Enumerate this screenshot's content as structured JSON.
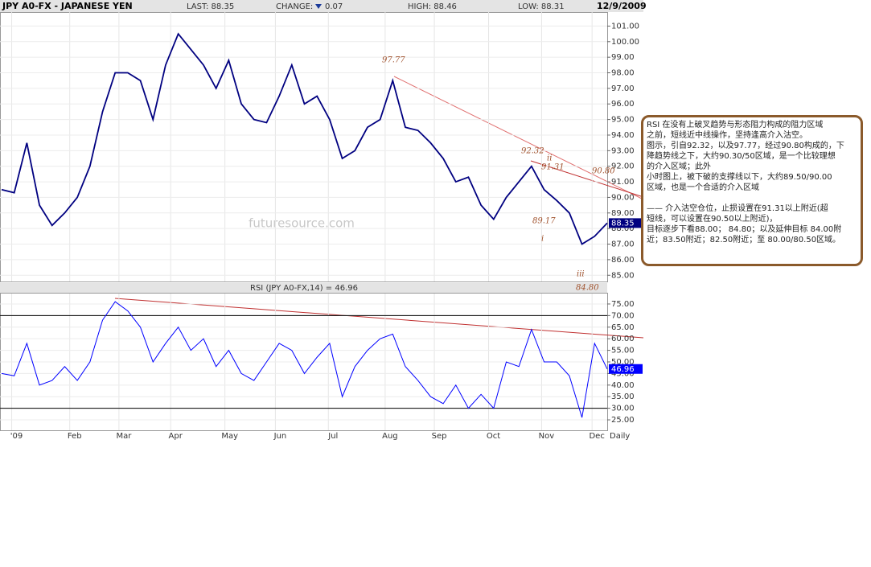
{
  "chart_data": {
    "type": "line",
    "title": "JPY A0-FX - JAPANESE YEN",
    "header": {
      "last": "LAST: 88.35",
      "change_label": "CHANGE:",
      "change": "0.07",
      "high": "HIGH: 88.46",
      "low": "LOW: 88.31",
      "date": "12/9/2009"
    },
    "watermark": "futuresource.com",
    "period": "Daily",
    "xlim": [
      0,
      48
    ],
    "xticks": [
      {
        "value": 0.8,
        "label": "'09"
      },
      {
        "value": 5.4,
        "label": "Feb"
      },
      {
        "value": 9.3,
        "label": "Mar"
      },
      {
        "value": 13.4,
        "label": "Apr"
      },
      {
        "value": 17.7,
        "label": "May"
      },
      {
        "value": 21.7,
        "label": "Jun"
      },
      {
        "value": 25.9,
        "label": "Jul"
      },
      {
        "value": 30.4,
        "label": "Aug"
      },
      {
        "value": 34.3,
        "label": "Sep"
      },
      {
        "value": 38.6,
        "label": "Oct"
      },
      {
        "value": 42.8,
        "label": "Nov"
      },
      {
        "value": 46.8,
        "label": "Dec"
      }
    ],
    "ylim": [
      84.6,
      101.9
    ],
    "yticks": [
      {
        "value": 85,
        "label": "85.00"
      },
      {
        "value": 86,
        "label": "86.00"
      },
      {
        "value": 87,
        "label": "87.00"
      },
      {
        "value": 88,
        "label": "88.00"
      },
      {
        "value": 89,
        "label": "89.00"
      },
      {
        "value": 90,
        "label": "90.00"
      },
      {
        "value": 91,
        "label": "91.00"
      },
      {
        "value": 92,
        "label": "92.00"
      },
      {
        "value": 93,
        "label": "93.00"
      },
      {
        "value": 94,
        "label": "94.00"
      },
      {
        "value": 95,
        "label": "95.00"
      },
      {
        "value": 96,
        "label": "96.00"
      },
      {
        "value": 97,
        "label": "97.00"
      },
      {
        "value": 98,
        "label": "98.00"
      },
      {
        "value": 99,
        "label": "99.00"
      },
      {
        "value": 100,
        "label": "100.00"
      },
      {
        "value": 101,
        "label": "101.00"
      }
    ],
    "grid": true,
    "series": [
      {
        "name": "JPY A0-FX",
        "color": "#000080",
        "values": [
          90.5,
          90.3,
          93.5,
          89.5,
          88.2,
          89.0,
          90.0,
          92.0,
          95.5,
          98.0,
          98.0,
          97.5,
          95.0,
          98.5,
          100.5,
          99.5,
          98.5,
          97.0,
          98.8,
          96.0,
          95.0,
          94.8,
          96.5,
          98.5,
          96.0,
          96.5,
          95.0,
          92.5,
          93.0,
          94.5,
          95.0,
          97.5,
          94.5,
          94.3,
          93.5,
          92.5,
          91.0,
          91.3,
          89.5,
          88.6,
          90.0,
          91.0,
          92.0,
          90.5,
          89.8,
          89.0,
          87.0,
          87.5,
          88.35
        ]
      }
    ],
    "annotations": [
      "97.77",
      "92.32",
      "91.31",
      "90.80",
      "89.17",
      "84.80",
      "ii",
      "i",
      "iii"
    ],
    "rsi": {
      "title": "RSI (JPY A0-FX,14) = 46.96",
      "color": "#0000ff",
      "ylim": [
        20.5,
        79.5
      ],
      "yticks": [
        {
          "value": 25,
          "label": "25.00"
        },
        {
          "value": 30,
          "label": "30.00"
        },
        {
          "value": 35,
          "label": "35.00"
        },
        {
          "value": 40,
          "label": "40.00"
        },
        {
          "value": 45,
          "label": "45.00"
        },
        {
          "value": 50,
          "label": "50.00"
        },
        {
          "value": 55,
          "label": "55.00"
        },
        {
          "value": 60,
          "label": "60.00"
        },
        {
          "value": 65,
          "label": "65.00"
        },
        {
          "value": 70,
          "label": "70.00"
        },
        {
          "value": 75,
          "label": "75.00"
        }
      ],
      "levels": [
        70,
        30
      ],
      "values": [
        45,
        44,
        58,
        40,
        42,
        48,
        42,
        50,
        68,
        76,
        72,
        65,
        50,
        58,
        65,
        55,
        60,
        48,
        55,
        45,
        42,
        50,
        58,
        55,
        45,
        52,
        58,
        35,
        48,
        55,
        60,
        62,
        48,
        42,
        35,
        32,
        40,
        30,
        36,
        30,
        50,
        48,
        64,
        50,
        50,
        44,
        26,
        58,
        46.96
      ]
    },
    "note": {
      "paragraph1": [
        "RSI 在没有上破叉趋势与形态阻力构成的阻力区域",
        "之前，短线近中线操作，坚持逢高介入沽空。",
        "图示，引自92.32，以及97.77，经过90.80构成的，下",
        "降趋势线之下，大约90.30/50区域，是一个比较理想",
        "的介入区域；此外",
        "小时图上，被下破的支撑线以下，大约89.50/90.00",
        "区域，也是一个合适的介入区域"
      ],
      "paragraph2": [
        "—— 介入沽空仓位，止损设置在91.31以上附近(超",
        "短线，可以设置在90.50以上附近)，",
        "目标逐步下看88.00； 84.80；以及延伸目标 84.00附",
        "近；83.50附近；82.50附近；至 80.00/80.50区域。"
      ]
    }
  }
}
